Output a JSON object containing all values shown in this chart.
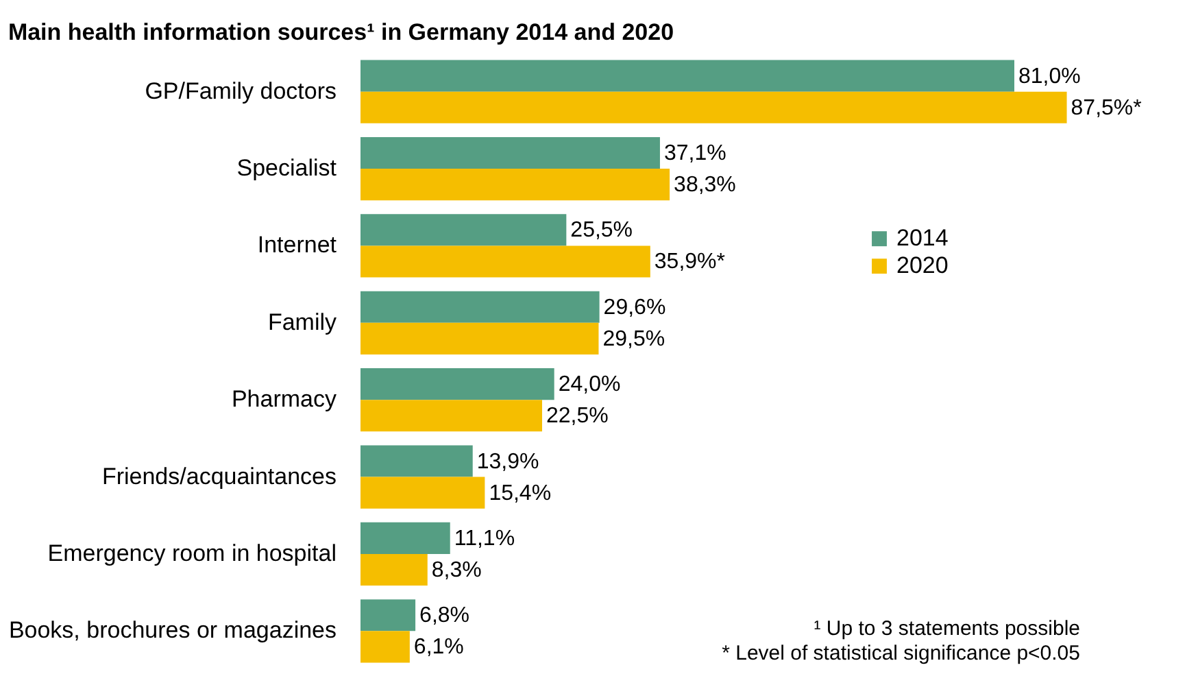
{
  "chart_data": {
    "type": "bar",
    "orientation": "horizontal",
    "title": "Main health information sources¹ in Germany 2014 and 2020",
    "categories": [
      "GP/Family doctors",
      "Specialist",
      "Internet",
      "Family",
      "Pharmacy",
      "Friends/acquaintances",
      "Emergency room in hospital",
      "Books, brochures or magazines"
    ],
    "series": [
      {
        "name": "2014",
        "color": "#559e83",
        "values": [
          81.0,
          37.1,
          25.5,
          29.6,
          24.0,
          13.9,
          11.1,
          6.8
        ],
        "value_labels": [
          "81,0%",
          "37,1%",
          "25,5%",
          "29,6%",
          "24,0%",
          "13,9%",
          "11,1%",
          "6,8%"
        ]
      },
      {
        "name": "2020",
        "color": "#f5be00",
        "values": [
          87.5,
          38.3,
          35.9,
          29.5,
          22.5,
          15.4,
          8.3,
          6.1
        ],
        "value_labels": [
          "87,5%*",
          "38,3%",
          "35,9%*",
          "29,5%",
          "22,5%",
          "15,4%",
          "8,3%",
          "6,1%"
        ]
      }
    ],
    "legend": "right",
    "annotations": [
      "¹ Up to 3 statements possible",
      "* Level of statistical significance p<0.05"
    ]
  }
}
